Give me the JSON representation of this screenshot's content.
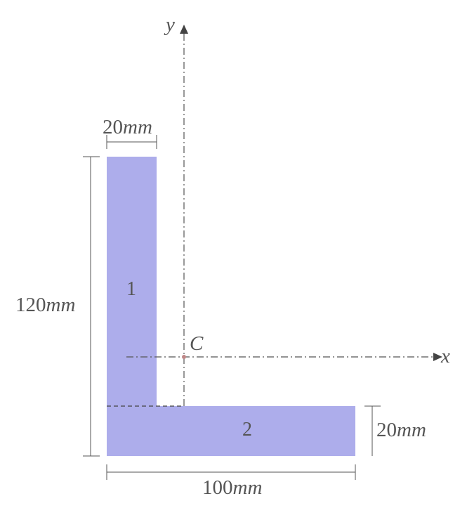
{
  "diagram": {
    "fill_color": "#adadeb",
    "line_color": "#555555",
    "centroid_color": "#c08888",
    "axes": {
      "x_label": "x",
      "y_label": "y"
    },
    "centroid_label": "C",
    "parts": [
      {
        "label": "1"
      },
      {
        "label": "2"
      }
    ],
    "dimensions": {
      "top_width": {
        "value": "20",
        "unit": "mm"
      },
      "height": {
        "value": "120",
        "unit": "mm"
      },
      "flange_thickness": {
        "value": "20",
        "unit": "mm"
      },
      "base_width": {
        "value": "100",
        "unit": "mm"
      }
    }
  }
}
